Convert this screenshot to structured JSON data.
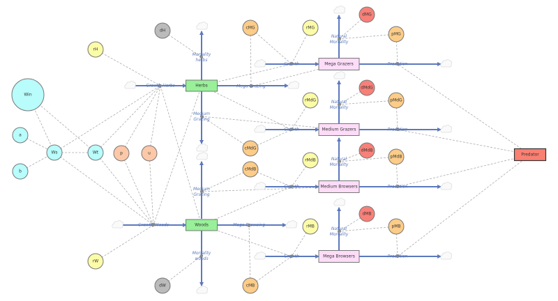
{
  "colors": {
    "flow": "#5b79bd",
    "stock_plant": "#98f098",
    "stock_animal": "#fddcf8",
    "predator": "#fa8072",
    "water": "#b8fcfc",
    "param_yellow": "#fcfca8",
    "param_orange": "#fccc88",
    "param_peach": "#fcc8a8",
    "param_red": "#f88078",
    "param_gray": "#bbbbbb"
  },
  "stocks": [
    {
      "id": "herbs",
      "label": "Herbs",
      "color": "#98f098"
    },
    {
      "id": "woods",
      "label": "Woods",
      "color": "#98f098"
    },
    {
      "id": "megaG",
      "label": "Mega Grazers",
      "color": "#fddcf8"
    },
    {
      "id": "medG",
      "label": "Medium Grazers",
      "color": "#fddcf8"
    },
    {
      "id": "medB",
      "label": "Medium Browsers",
      "color": "#fddcf8"
    },
    {
      "id": "megaB",
      "label": "Mega Browsers",
      "color": "#fddcf8"
    },
    {
      "id": "pred",
      "label": "Predator",
      "color": "#fa8072"
    }
  ],
  "variables": [
    {
      "id": "Win",
      "label": "Win",
      "color": "#b8fcfc"
    },
    {
      "id": "a",
      "label": "a",
      "color": "#b8fcfc"
    },
    {
      "id": "b",
      "label": "b",
      "color": "#b8fcfc"
    },
    {
      "id": "Ws",
      "label": "Ws",
      "color": "#b8fcfc"
    },
    {
      "id": "Wt",
      "label": "Wt",
      "color": "#b8fcfc"
    },
    {
      "id": "p",
      "label": "p",
      "color": "#fcc8a8"
    },
    {
      "id": "u",
      "label": "u",
      "color": "#fcc8a8"
    },
    {
      "id": "rH",
      "label": "rH",
      "color": "#fcfca8"
    },
    {
      "id": "rW",
      "label": "rW",
      "color": "#fcfca8"
    },
    {
      "id": "dH",
      "label": "dH",
      "color": "#bbbbbb"
    },
    {
      "id": "dW",
      "label": "dW",
      "color": "#bbbbbb"
    },
    {
      "id": "cMG",
      "label": "cMG",
      "color": "#fccc88"
    },
    {
      "id": "rMG",
      "label": "rMG",
      "color": "#fcfca8"
    },
    {
      "id": "dMG",
      "label": "dMG",
      "color": "#f88078"
    },
    {
      "id": "pMG",
      "label": "pMG",
      "color": "#fccc88"
    },
    {
      "id": "rMdG",
      "label": "rMdG",
      "color": "#fcfca8"
    },
    {
      "id": "dMdG",
      "label": "dMdG",
      "color": "#f88078"
    },
    {
      "id": "pMdG",
      "label": "pMdG",
      "color": "#fccc88"
    },
    {
      "id": "cMdG",
      "label": "cMdG",
      "color": "#fccc88"
    },
    {
      "id": "cMdB",
      "label": "cMdB",
      "color": "#fccc88"
    },
    {
      "id": "rMdB",
      "label": "rMdB",
      "color": "#fcfca8"
    },
    {
      "id": "dMdB",
      "label": "dMdB",
      "color": "#f88078"
    },
    {
      "id": "pMdB",
      "label": "pMdB",
      "color": "#fccc88"
    },
    {
      "id": "rMB",
      "label": "rMB",
      "color": "#fcfca8"
    },
    {
      "id": "dMB",
      "label": "dMB",
      "color": "#f88078"
    },
    {
      "id": "pMB",
      "label": "pMB",
      "color": "#fccc88"
    },
    {
      "id": "cMB",
      "label": "cMB",
      "color": "#fccc88"
    }
  ],
  "flows": [
    {
      "id": "gH",
      "label": "Growth Herbs"
    },
    {
      "id": "mH",
      "label": "Mortality herbs"
    },
    {
      "id": "mgH",
      "label": "Mega Grazing"
    },
    {
      "id": "mdgH",
      "label": "Medium Grazing"
    },
    {
      "id": "gW",
      "label": "Growth Woods"
    },
    {
      "id": "mdgW",
      "label": "Medium Grazing"
    },
    {
      "id": "mbW",
      "label": "Mega Browsing"
    },
    {
      "id": "mW",
      "label": "Mortality woods"
    },
    {
      "id": "gMG",
      "label": "Growth"
    },
    {
      "id": "nMG",
      "label": "Natural Mortality"
    },
    {
      "id": "pdMG",
      "label": "Predation"
    },
    {
      "id": "gMdG",
      "label": "Growth"
    },
    {
      "id": "nMdG",
      "label": "Natural Mortality"
    },
    {
      "id": "pdMdG",
      "label": "Predation"
    },
    {
      "id": "gMdB",
      "label": "Growth"
    },
    {
      "id": "nMdB",
      "label": "Natural Mortality"
    },
    {
      "id": "pdMdB",
      "label": "Predation"
    },
    {
      "id": "gMB",
      "label": "Growth"
    },
    {
      "id": "nMB",
      "label": "Natural Mortality"
    },
    {
      "id": "pdMB",
      "label": "Predation"
    }
  ],
  "links": [
    [
      "Win",
      "Ws"
    ],
    [
      "Win",
      "Wt"
    ],
    [
      "a",
      "Ws"
    ],
    [
      "b",
      "Ws"
    ],
    [
      "Ws",
      "Wt"
    ],
    [
      "rH",
      "gH"
    ],
    [
      "Ws",
      "gH"
    ],
    [
      "Wt",
      "gH"
    ],
    [
      "p",
      "gH"
    ],
    [
      "u",
      "gH"
    ],
    [
      "gH",
      "woods"
    ],
    [
      "Ws",
      "gW"
    ],
    [
      "Wt",
      "gW"
    ],
    [
      "p",
      "gW"
    ],
    [
      "u",
      "gW"
    ],
    [
      "rW",
      "gW"
    ],
    [
      "herbs",
      "gW"
    ],
    [
      "dH",
      "mH"
    ],
    [
      "dW",
      "mW"
    ],
    [
      "cMG",
      "mgH"
    ],
    [
      "cMG",
      "gMG"
    ],
    [
      "rMG",
      "gMG"
    ],
    [
      "herbs",
      "gMG"
    ],
    [
      "megaG",
      "mgH"
    ],
    [
      "dMG",
      "nMG"
    ],
    [
      "pMG",
      "nMG"
    ],
    [
      "pMG",
      "pdMG"
    ],
    [
      "pred",
      "pdMG"
    ],
    [
      "cMdG",
      "mdgH"
    ],
    [
      "cMdG",
      "gMdG"
    ],
    [
      "rMdG",
      "gMdG"
    ],
    [
      "herbs",
      "gMdG"
    ],
    [
      "medG",
      "mdgH"
    ],
    [
      "dMdG",
      "nMdG"
    ],
    [
      "pMdG",
      "nMdG"
    ],
    [
      "pMdG",
      "pdMdG"
    ],
    [
      "pred",
      "pdMdG"
    ],
    [
      "cMdB",
      "mdgW"
    ],
    [
      "cMdB",
      "gMdB"
    ],
    [
      "rMdB",
      "gMdB"
    ],
    [
      "woods",
      "gMdB"
    ],
    [
      "medB",
      "mdgW"
    ],
    [
      "dMdB",
      "nMdB"
    ],
    [
      "pMdB",
      "nMdB"
    ],
    [
      "pMdB",
      "pdMdB"
    ],
    [
      "pred",
      "pdMdB"
    ],
    [
      "cMB",
      "mbW"
    ],
    [
      "cMB",
      "gMB"
    ],
    [
      "rMB",
      "gMB"
    ],
    [
      "woods",
      "gMB"
    ],
    [
      "dMB",
      "nMB"
    ],
    [
      "pMB",
      "nMB"
    ],
    [
      "pMB",
      "pdMB"
    ],
    [
      "pred",
      "pdMB"
    ]
  ]
}
